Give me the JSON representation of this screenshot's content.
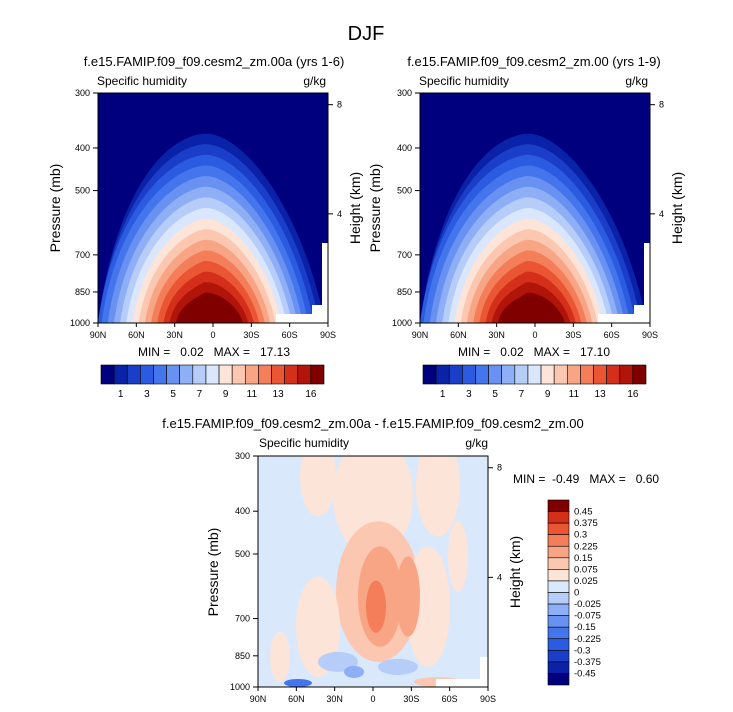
{
  "page_title": "DJF",
  "chart_data": [
    {
      "type": "heatmap",
      "title": "f.e15.FAMIP.f09_f09.cesm2_zm.00a (yrs 1-6)",
      "left_label": "Specific humidity",
      "right_label": "g/kg",
      "ylabel": "Pressure (mb)",
      "ylabel_right": "Height (km)",
      "yticks": [
        "300",
        "400",
        "500",
        "700",
        "850",
        "1000"
      ],
      "yticks_right": [
        "8",
        "4"
      ],
      "xticks": [
        "90N",
        "60N",
        "30N",
        "0",
        "30S",
        "60S",
        "90S"
      ],
      "stats": "MIN =   0.02   MAX =   17.13",
      "min": 0.02,
      "max": 17.13,
      "colorbar_labels": [
        "1",
        "3",
        "5",
        "7",
        "9",
        "11",
        "13",
        "16"
      ]
    },
    {
      "type": "heatmap",
      "title": "f.e15.FAMIP.f09_f09.cesm2_zm.00 (yrs 1-9)",
      "left_label": "Specific humidity",
      "right_label": "g/kg",
      "ylabel": "Pressure (mb)",
      "ylabel_right": "Height (km)",
      "yticks": [
        "300",
        "400",
        "500",
        "700",
        "850",
        "1000"
      ],
      "yticks_right": [
        "8",
        "4"
      ],
      "xticks": [
        "90N",
        "60N",
        "30N",
        "0",
        "30S",
        "60S",
        "90S"
      ],
      "stats": "MIN =   0.02   MAX =   17.10",
      "min": 0.02,
      "max": 17.1,
      "colorbar_labels": [
        "1",
        "3",
        "5",
        "7",
        "9",
        "11",
        "13",
        "16"
      ]
    },
    {
      "type": "heatmap",
      "title": "f.e15.FAMIP.f09_f09.cesm2_zm.00a - f.e15.FAMIP.f09_f09.cesm2_zm.00",
      "left_label": "Specific humidity",
      "right_label": "g/kg",
      "ylabel": "Pressure (mb)",
      "ylabel_right": "Height (km)",
      "yticks": [
        "300",
        "400",
        "500",
        "700",
        "850",
        "1000"
      ],
      "yticks_right": [
        "8",
        "4"
      ],
      "xticks": [
        "90N",
        "60N",
        "30N",
        "0",
        "30S",
        "60S",
        "90S"
      ],
      "stats": "MIN =  -0.49   MAX =   0.60",
      "min": -0.49,
      "max": 0.6,
      "colorbar_labels": [
        "0.45",
        "0.375",
        "0.3",
        "0.225",
        "0.15",
        "0.075",
        "0.025",
        "0",
        "-0.025",
        "-0.075",
        "-0.15",
        "-0.225",
        "-0.3",
        "-0.375",
        "-0.45"
      ]
    }
  ],
  "colors": {
    "abs_scale": [
      "#00007f",
      "#0a22a8",
      "#1a3ec8",
      "#2b5be0",
      "#4575ec",
      "#6891f2",
      "#8eaef6",
      "#b6cdf9",
      "#dae6fb",
      "#fde4d8",
      "#fbc7b0",
      "#f8a585",
      "#f47e5a",
      "#ea5634",
      "#d42f1a",
      "#b11408",
      "#800000"
    ],
    "diff_scale": [
      "#00007f",
      "#0a22a8",
      "#1a3ec8",
      "#2b5be0",
      "#4575ec",
      "#6891f2",
      "#8eaef6",
      "#b6cdf9",
      "#dae8fb",
      "#fde4d8",
      "#fbc7b0",
      "#f8a585",
      "#f47e5a",
      "#ea5634",
      "#d42f1a",
      "#800000"
    ]
  }
}
